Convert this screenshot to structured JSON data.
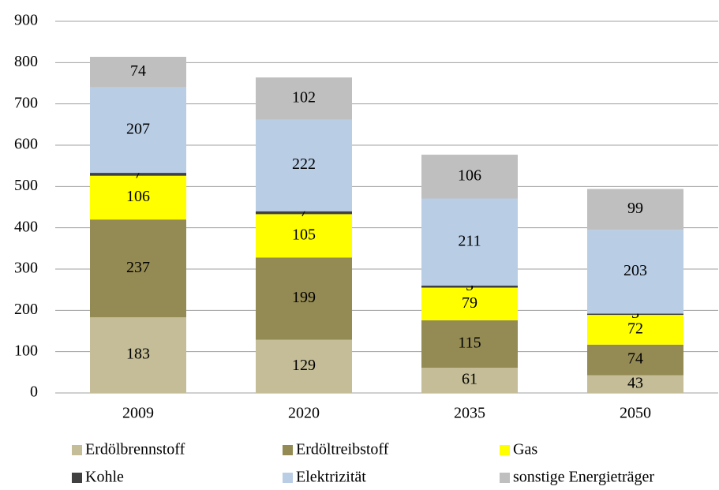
{
  "chart_data": {
    "type": "stacked_bar",
    "categories": [
      "2009",
      "2020",
      "2035",
      "2050"
    ],
    "series": [
      {
        "name": "Erdölbrennstoff",
        "color": "#c4bd97",
        "values": [
          183,
          129,
          61,
          43
        ]
      },
      {
        "name": "Erdöltreibstoff",
        "color": "#948a54",
        "values": [
          237,
          199,
          115,
          74
        ]
      },
      {
        "name": "Gas",
        "color": "#ffff00",
        "values": [
          106,
          105,
          79,
          72
        ]
      },
      {
        "name": "Kohle",
        "color": "#404040",
        "values": [
          7,
          7,
          5,
          3
        ]
      },
      {
        "name": "Elektrizität",
        "color": "#b9cde5",
        "values": [
          207,
          222,
          211,
          203
        ]
      },
      {
        "name": "sonstige Energieträger",
        "color": "#bfbfbf",
        "values": [
          74,
          102,
          106,
          99
        ]
      }
    ],
    "ylim": [
      0,
      900
    ],
    "yticks": [
      0,
      100,
      200,
      300,
      400,
      500,
      600,
      700,
      800,
      900
    ],
    "grid": true,
    "legend": "bottom"
  }
}
